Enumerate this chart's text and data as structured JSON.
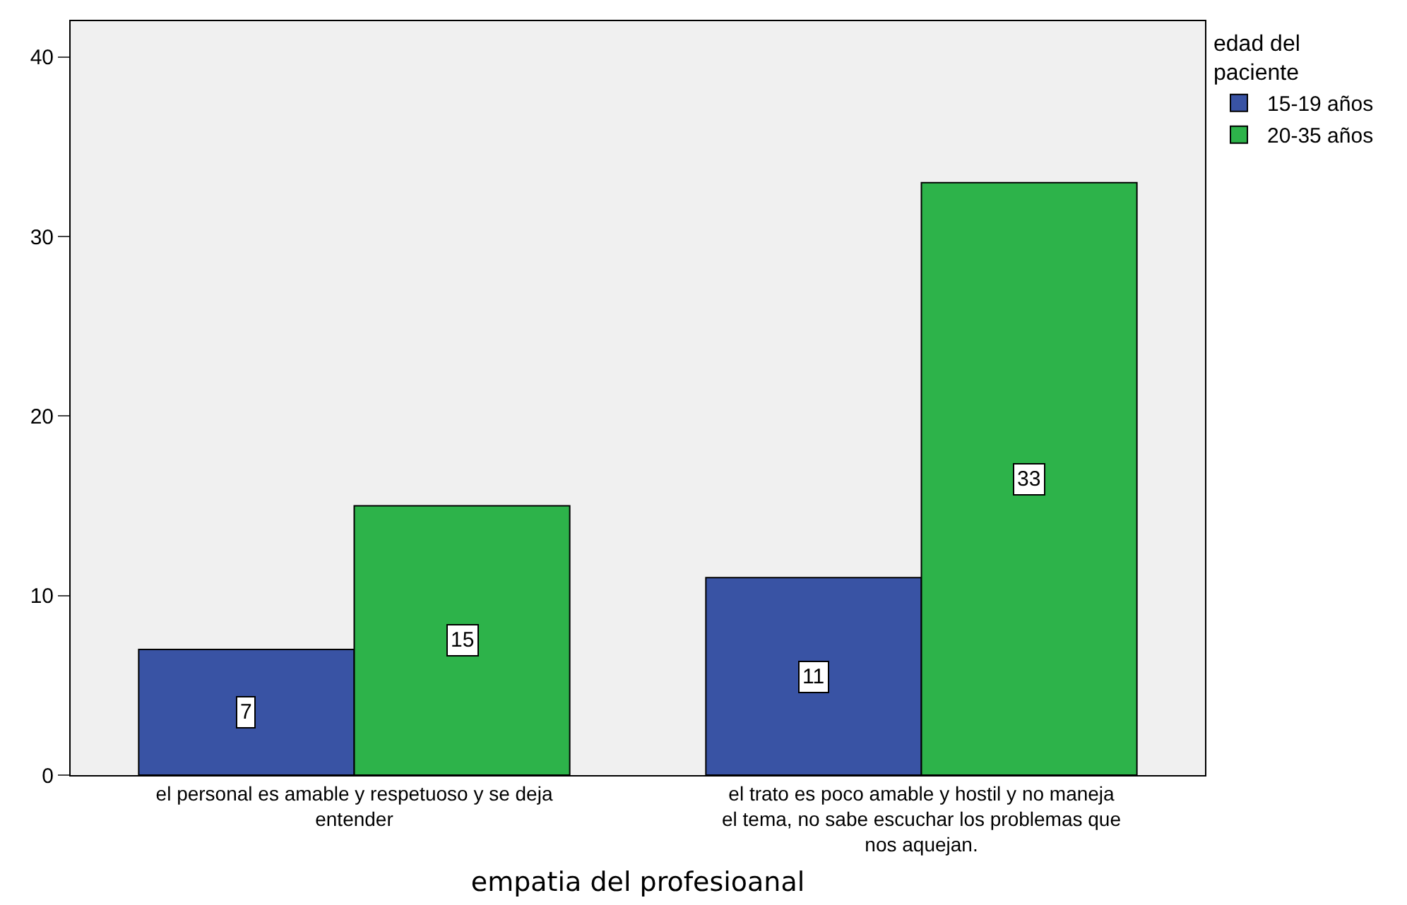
{
  "chart_data": {
    "type": "bar",
    "xlabel": "empatia del profesioanal",
    "legend_title": "edad del paciente",
    "categories": [
      "el personal es amable y respetuoso y se deja entender",
      "el trato es poco amable y hostil y no maneja el tema, no sabe escuchar los problemas que nos aquejan."
    ],
    "series": [
      {
        "name": "15-19 años",
        "color": "#3953a4",
        "values": [
          7,
          11
        ]
      },
      {
        "name": "20-35 años",
        "color": "#2db34a",
        "values": [
          15,
          33
        ]
      }
    ],
    "ylim": [
      0,
      42
    ],
    "yticks": [
      0,
      10,
      20,
      30,
      40
    ],
    "grid": false,
    "legend": "top right",
    "data_labels": true
  }
}
